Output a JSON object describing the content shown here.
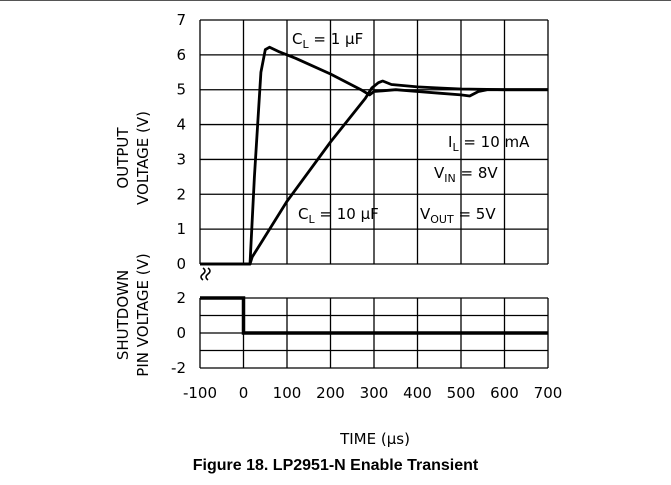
{
  "caption": "Figure 18. LP2951-N Enable Transient",
  "chart_data": [
    {
      "type": "line",
      "ylabel_lines": [
        "OUTPUT",
        "VOLTAGE (V)"
      ],
      "ylim": [
        0,
        7
      ],
      "yticks": [
        "0",
        "1",
        "2",
        "3",
        "4",
        "5",
        "6",
        "7"
      ],
      "xlim": [
        -100,
        700
      ],
      "grid": true,
      "series": [
        {
          "name": "C_L = 1 μF",
          "x": [
            -100,
            15,
            25,
            40,
            50,
            60,
            80,
            120,
            200,
            270,
            290,
            300,
            350,
            400,
            450,
            500,
            520,
            540,
            560,
            600,
            700
          ],
          "y": [
            0,
            0,
            2.5,
            5.5,
            6.15,
            6.22,
            6.1,
            5.9,
            5.45,
            5.0,
            4.85,
            4.95,
            5.0,
            4.95,
            4.9,
            4.85,
            4.82,
            4.95,
            5.0,
            5.0,
            5.0
          ]
        },
        {
          "name": "C_L = 10 μF",
          "x": [
            -100,
            15,
            20,
            40,
            100,
            200,
            280,
            295,
            310,
            320,
            340,
            400,
            450,
            500,
            600,
            700
          ],
          "y": [
            0,
            0,
            0.2,
            0.6,
            1.8,
            3.5,
            4.75,
            5.05,
            5.2,
            5.25,
            5.15,
            5.08,
            5.05,
            5.02,
            5.0,
            5.0
          ]
        }
      ],
      "labels": {
        "c1_main": "C",
        "c1_sub": "L",
        "c1_rest": " = 1 μF",
        "c10_main": "C",
        "c10_sub": "L",
        "c10_rest": " = 10 μF",
        "il_main": "I",
        "il_sub": "L",
        "il_rest": " = 10 mA",
        "vin_main": "V",
        "vin_sub": "IN",
        "vin_rest": " = 8V",
        "vout_main": "V",
        "vout_sub": "OUT",
        "vout_rest": " = 5V"
      }
    },
    {
      "type": "line",
      "ylabel_lines": [
        "SHUTDOWN",
        "PIN VOLTAGE (V)"
      ],
      "ylim": [
        -2,
        2
      ],
      "yticks": [
        "2",
        "0",
        "-2"
      ],
      "xlim": [
        -100,
        700
      ],
      "xticks": [
        "-100",
        "0",
        "100",
        "200",
        "300",
        "400",
        "500",
        "600",
        "700"
      ],
      "xlabel": "TIME (μs)",
      "grid": true,
      "series": [
        {
          "x": [
            -100,
            0,
            0,
            700
          ],
          "y": [
            2,
            2,
            0,
            0
          ]
        }
      ]
    }
  ]
}
